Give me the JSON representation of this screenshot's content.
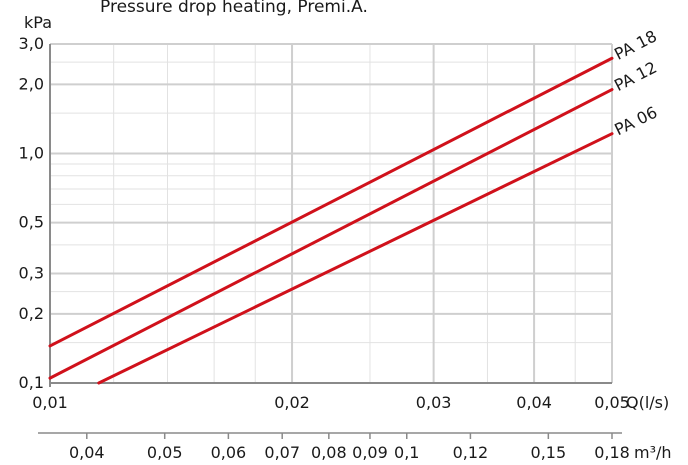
{
  "chart_data": {
    "type": "line",
    "title": "Pressure drop heating, Premi.A.",
    "ylabel": "kPa",
    "xlabel": "Q(l/s)",
    "x2label": "m³/h",
    "xscale": "log",
    "yscale": "log",
    "xlim": [
      0.01,
      0.05
    ],
    "ylim": [
      0.1,
      3.0
    ],
    "yticks": [
      {
        "value": 0.1,
        "label": "0,1"
      },
      {
        "value": 0.2,
        "label": "0,2"
      },
      {
        "value": 0.3,
        "label": "0,3"
      },
      {
        "value": 0.5,
        "label": "0,5"
      },
      {
        "value": 1.0,
        "label": "1,0"
      },
      {
        "value": 2.0,
        "label": "2,0"
      },
      {
        "value": 3.0,
        "label": "3,0"
      }
    ],
    "xticks": [
      {
        "value": 0.01,
        "label": "0,01"
      },
      {
        "value": 0.02,
        "label": "0,02"
      },
      {
        "value": 0.03,
        "label": "0,03"
      },
      {
        "value": 0.04,
        "label": "0,04"
      },
      {
        "value": 0.05,
        "label": "0,05"
      }
    ],
    "x2ticks": [
      {
        "value": 0.04,
        "label": "0,04"
      },
      {
        "value": 0.05,
        "label": "0,05"
      },
      {
        "value": 0.06,
        "label": "0,06"
      },
      {
        "value": 0.07,
        "label": "0,07"
      },
      {
        "value": 0.08,
        "label": "0,08"
      },
      {
        "value": 0.09,
        "label": "0,09"
      },
      {
        "value": 0.1,
        "label": "0,1"
      },
      {
        "value": 0.12,
        "label": "0,12"
      },
      {
        "value": 0.15,
        "label": "0,15"
      },
      {
        "value": 0.18,
        "label": "0,18"
      }
    ],
    "grid": true,
    "series_color": "#d0111b",
    "series": [
      {
        "name": "PA 18",
        "x": [
          0.01,
          0.05
        ],
        "y": [
          0.145,
          2.6
        ]
      },
      {
        "name": "PA 12",
        "x": [
          0.01,
          0.05
        ],
        "y": [
          0.105,
          1.9
        ]
      },
      {
        "name": "PA 06",
        "x": [
          0.0115,
          0.05
        ],
        "y": [
          0.1,
          1.22
        ]
      }
    ]
  }
}
